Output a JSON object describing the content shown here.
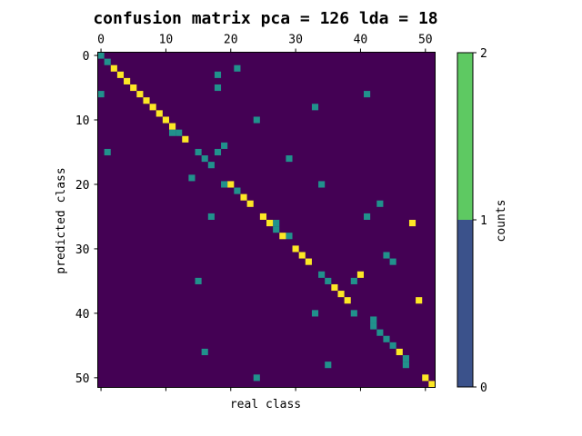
{
  "chart_data": {
    "type": "heatmap",
    "title": "confusion matrix pca = 126 lda = 18",
    "xlabel": "real class",
    "ylabel": "predicted class",
    "n_classes": 52,
    "x_ticks": [
      0,
      10,
      20,
      30,
      40,
      50
    ],
    "y_ticks": [
      0,
      10,
      20,
      30,
      40,
      50
    ],
    "x_tick_labels": [
      "0",
      "10",
      "20",
      "30",
      "40",
      "50"
    ],
    "y_tick_labels": [
      "0",
      "10",
      "20",
      "30",
      "40",
      "50"
    ],
    "x_ticks_position": "top",
    "colorbar": {
      "label": "counts",
      "ticks": [
        "0",
        "1",
        "2"
      ],
      "colors": [
        "#3b528b",
        "#5ec962"
      ],
      "range": [
        0,
        2
      ]
    },
    "colormap": {
      "0": "#440154",
      "1": "#21918c",
      "2": "#fde725"
    },
    "cells_count_1": [
      [
        0,
        0
      ],
      [
        1,
        1
      ],
      [
        12,
        11
      ],
      [
        12,
        12
      ],
      [
        14,
        19
      ],
      [
        15,
        15
      ],
      [
        15,
        1
      ],
      [
        16,
        16
      ],
      [
        16,
        29
      ],
      [
        17,
        17
      ],
      [
        19,
        14
      ],
      [
        20,
        19
      ],
      [
        20,
        34
      ],
      [
        21,
        21
      ],
      [
        23,
        43
      ],
      [
        25,
        17
      ],
      [
        25,
        41
      ],
      [
        26,
        27
      ],
      [
        27,
        27
      ],
      [
        28,
        29
      ],
      [
        31,
        44
      ],
      [
        32,
        45
      ],
      [
        34,
        34
      ],
      [
        35,
        35
      ],
      [
        35,
        15
      ],
      [
        35,
        39
      ],
      [
        40,
        33
      ],
      [
        40,
        39
      ],
      [
        41,
        42
      ],
      [
        42,
        42
      ],
      [
        43,
        43
      ],
      [
        44,
        44
      ],
      [
        45,
        45
      ],
      [
        46,
        16
      ],
      [
        47,
        47
      ],
      [
        48,
        47
      ],
      [
        48,
        35
      ],
      [
        50,
        24
      ],
      [
        2,
        21
      ],
      [
        3,
        18
      ],
      [
        5,
        18
      ],
      [
        6,
        0
      ],
      [
        6,
        41
      ],
      [
        8,
        33
      ],
      [
        10,
        24
      ],
      [
        15,
        18
      ]
    ],
    "cells_count_2": [
      [
        2,
        2
      ],
      [
        3,
        3
      ],
      [
        4,
        4
      ],
      [
        5,
        5
      ],
      [
        6,
        6
      ],
      [
        7,
        7
      ],
      [
        8,
        8
      ],
      [
        9,
        9
      ],
      [
        10,
        10
      ],
      [
        11,
        11
      ],
      [
        13,
        13
      ],
      [
        20,
        20
      ],
      [
        22,
        22
      ],
      [
        23,
        23
      ],
      [
        25,
        25
      ],
      [
        26,
        26
      ],
      [
        26,
        48
      ],
      [
        28,
        28
      ],
      [
        30,
        30
      ],
      [
        31,
        31
      ],
      [
        32,
        32
      ],
      [
        34,
        40
      ],
      [
        36,
        36
      ],
      [
        37,
        37
      ],
      [
        38,
        38
      ],
      [
        38,
        49
      ],
      [
        46,
        46
      ],
      [
        50,
        50
      ],
      [
        51,
        51
      ]
    ]
  }
}
